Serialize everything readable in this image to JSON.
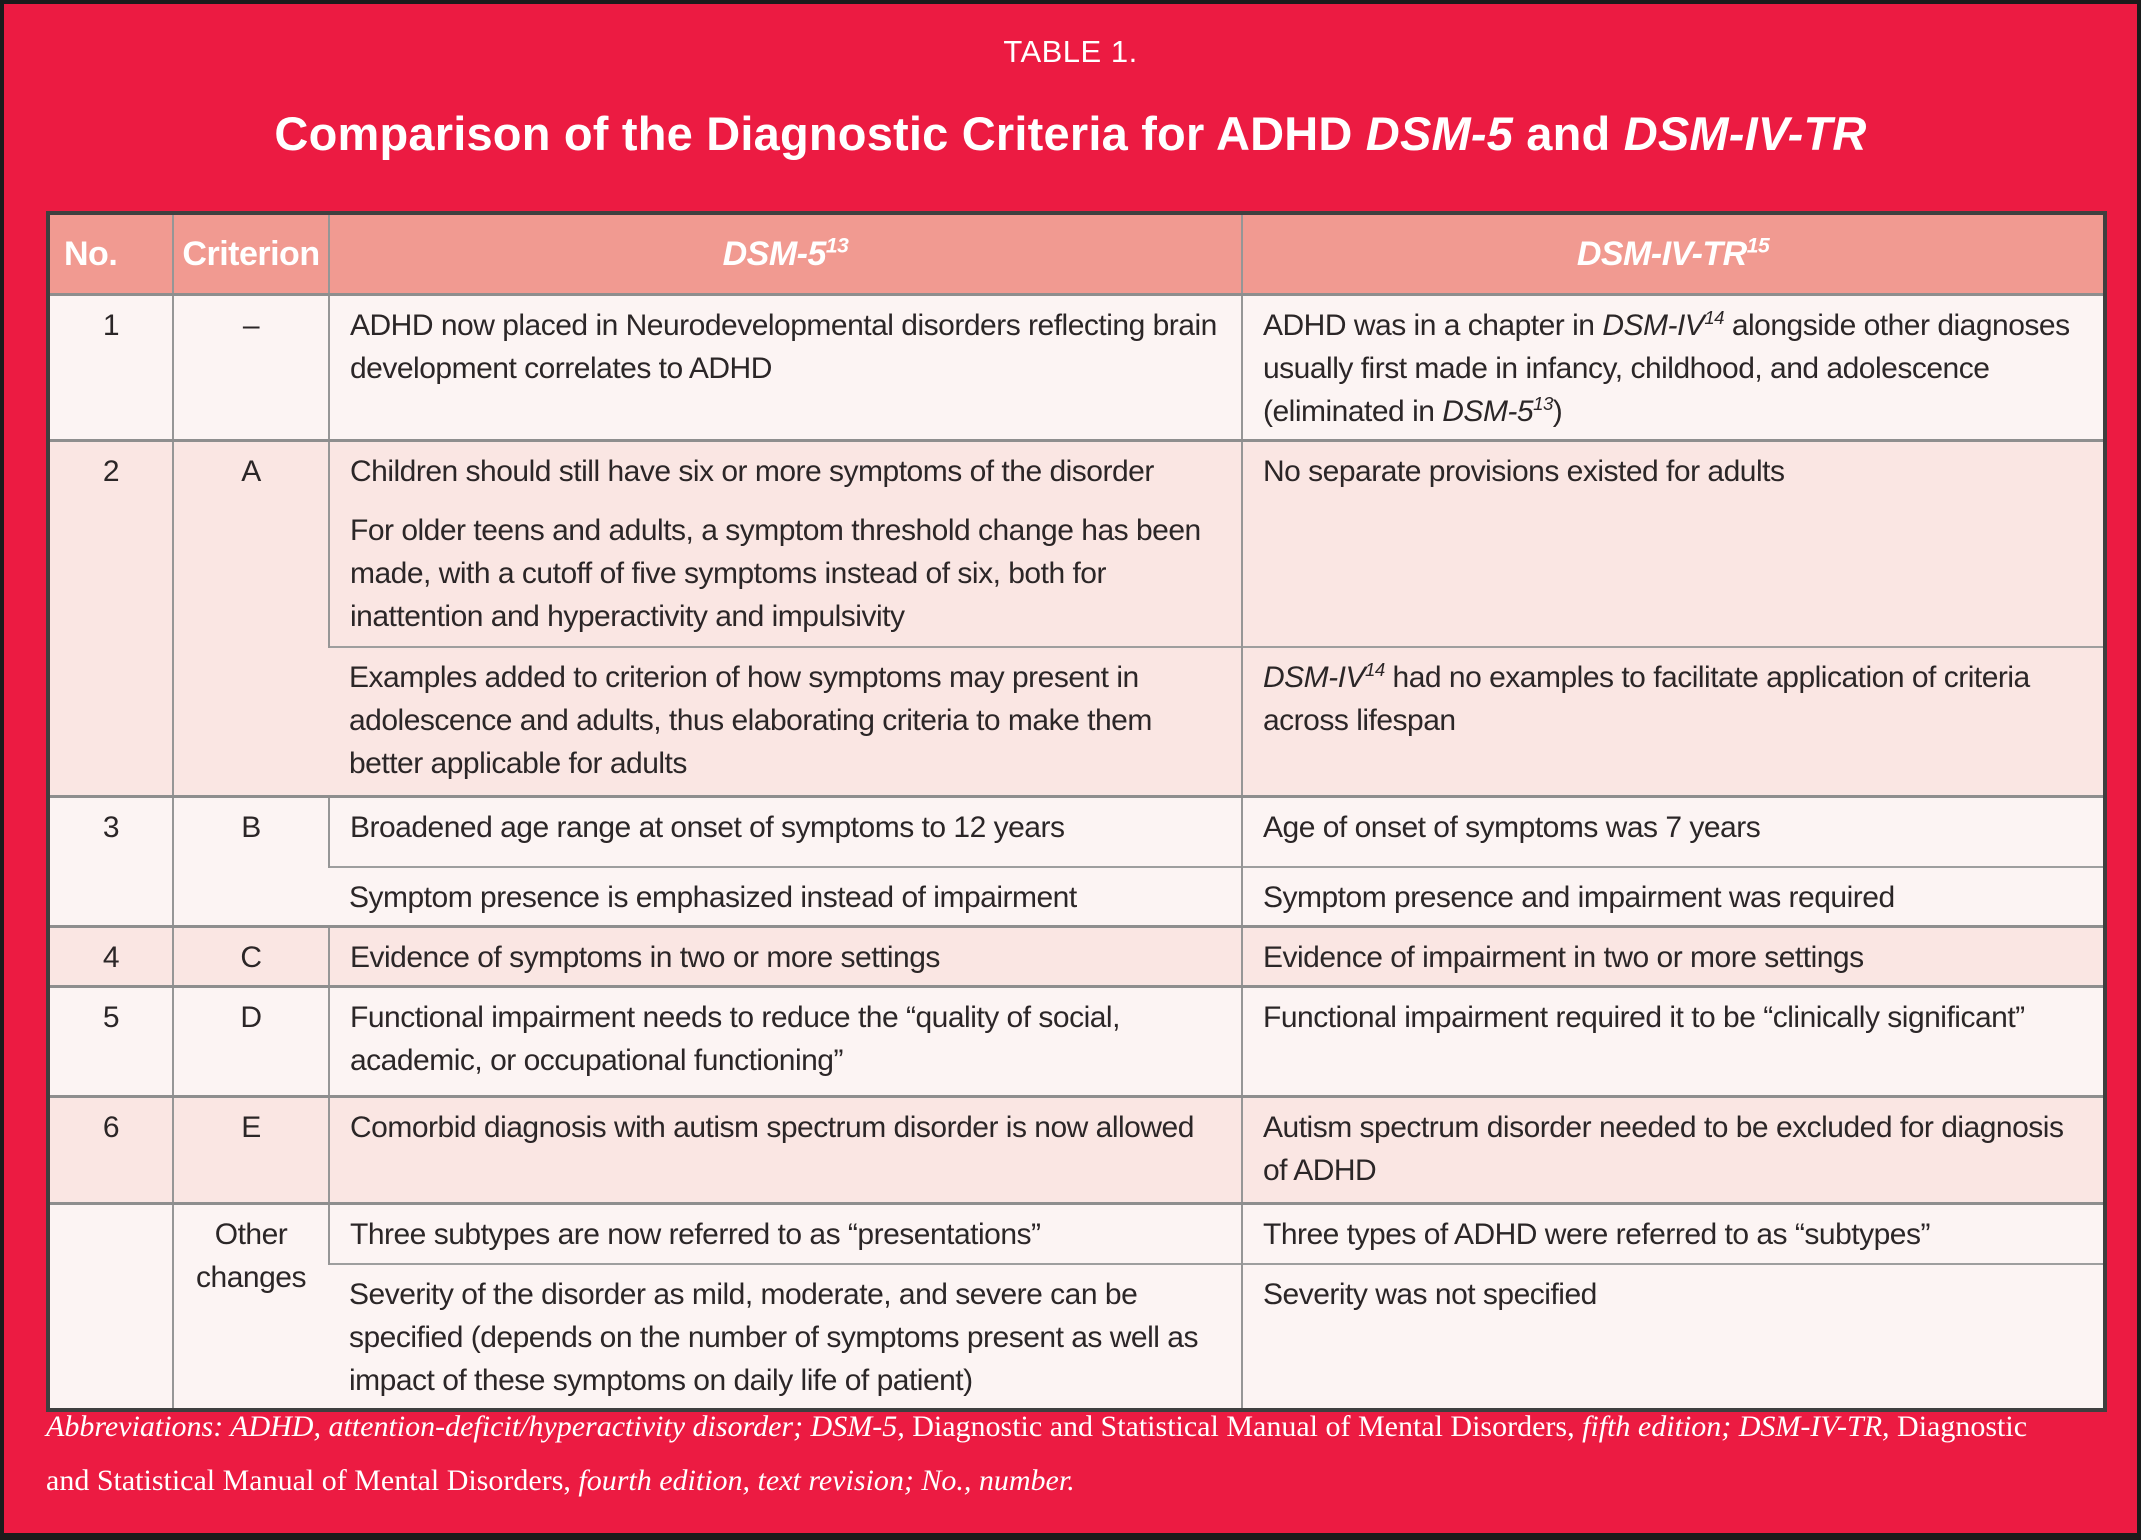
{
  "page": {
    "table_label": "TABLE 1.",
    "title_segments": [
      [
        {
          "t": "Comparison of the Diagnostic Criteria for ADHD "
        },
        {
          "t": "DSM-5",
          "i": true
        },
        {
          "t": " and "
        },
        {
          "t": "DSM-IV-TR",
          "i": true
        }
      ]
    ]
  },
  "colors": {
    "background_red": "#EC1B42",
    "header_pink": "#F19A91",
    "row_light": "#FCF4F3",
    "row_pink": "#FAE6E3",
    "grid_gray": "#8E8E8E",
    "text_dark": "#2B2627",
    "title_white": "#FFFFFF"
  },
  "table": {
    "columns": [
      {
        "label": "No."
      },
      {
        "label": "Criterion"
      },
      {
        "label_segments": [
          [
            {
              "t": "DSM-5",
              "i": true
            },
            {
              "t": "13",
              "i": true,
              "sup": true
            }
          ]
        ]
      },
      {
        "label_segments": [
          [
            {
              "t": "DSM-IV-TR",
              "i": true
            },
            {
              "t": "15",
              "i": true,
              "sup": true
            }
          ]
        ]
      }
    ],
    "rows": [
      {
        "no": "1",
        "criterion": "–",
        "subrows": [
          {
            "dsm5": [
              [
                {
                  "t": "ADHD now placed in Neurodevelopmental disorders reflecting brain development correlates to ADHD"
                }
              ]
            ],
            "dsmiv": [
              [
                {
                  "t": "ADHD was in a chapter in "
                },
                {
                  "t": "DSM-IV",
                  "i": true
                },
                {
                  "t": "14",
                  "i": true,
                  "sup": true
                },
                {
                  "t": " alongside other diagnoses usually first made in infancy, childhood, and adolescence (eliminated in "
                },
                {
                  "t": "DSM-5",
                  "i": true
                },
                {
                  "t": "13",
                  "i": true,
                  "sup": true
                },
                {
                  "t": ")"
                }
              ]
            ]
          }
        ]
      },
      {
        "no": "2",
        "criterion": "A",
        "subrows": [
          {
            "dsm5": [
              [
                {
                  "t": "Children should still have six or more symptoms of the disorder"
                }
              ],
              [
                {
                  "t": "For older teens and adults, a symptom threshold change has been made, with a cutoff of five symptoms instead of six, both for inattention and hyperactivity and impulsivity"
                }
              ]
            ],
            "dsmiv": [
              [
                {
                  "t": "No separate provisions existed for adults"
                }
              ]
            ]
          },
          {
            "dsm5": [
              [
                {
                  "t": "Examples added to criterion of how symptoms may present in adolescence and adults, thus elaborating criteria to make them better applicable for adults"
                }
              ]
            ],
            "dsmiv": [
              [
                {
                  "t": "DSM-IV",
                  "i": true
                },
                {
                  "t": "14",
                  "i": true,
                  "sup": true
                },
                {
                  "t": " had no examples to facilitate application of criteria across lifespan"
                }
              ]
            ]
          }
        ]
      },
      {
        "no": "3",
        "criterion": "B",
        "subrows": [
          {
            "dsm5": [
              [
                {
                  "t": "Broadened age range at onset of symptoms to 12 years"
                }
              ]
            ],
            "dsmiv": [
              [
                {
                  "t": "Age of onset of symptoms was 7 years"
                }
              ]
            ]
          },
          {
            "dsm5": [
              [
                {
                  "t": "Symptom presence is emphasized instead of impairment"
                }
              ]
            ],
            "dsmiv": [
              [
                {
                  "t": "Symptom presence and impairment was required"
                }
              ]
            ]
          }
        ]
      },
      {
        "no": "4",
        "criterion": "C",
        "subrows": [
          {
            "dsm5": [
              [
                {
                  "t": "Evidence of symptoms in two or more settings"
                }
              ]
            ],
            "dsmiv": [
              [
                {
                  "t": "Evidence of impairment in two or more settings"
                }
              ]
            ]
          }
        ]
      },
      {
        "no": "5",
        "criterion": "D",
        "subrows": [
          {
            "dsm5": [
              [
                {
                  "t": "Functional impairment needs to reduce the “quality of social, academic, or occupational functioning”"
                }
              ]
            ],
            "dsmiv": [
              [
                {
                  "t": "Functional impairment required it to be “clinically significant”"
                }
              ]
            ]
          }
        ]
      },
      {
        "no": "6",
        "criterion": "E",
        "subrows": [
          {
            "dsm5": [
              [
                {
                  "t": "Comorbid diagnosis with autism spectrum disorder is now allowed"
                }
              ]
            ],
            "dsmiv": [
              [
                {
                  "t": "Autism spectrum disorder needed to be excluded for diagnosis of ADHD"
                }
              ]
            ]
          }
        ]
      },
      {
        "no": "",
        "criterion": "Other changes",
        "subrows": [
          {
            "dsm5": [
              [
                {
                  "t": "Three subtypes are now referred to as “presentations”"
                }
              ]
            ],
            "dsmiv": [
              [
                {
                  "t": "Three types of ADHD were referred to as “subtypes”"
                }
              ]
            ]
          },
          {
            "dsm5": [
              [
                {
                  "t": "Severity of the disorder as mild, moderate, and severe can be specified (depends on the number of symptoms present as well as impact of these symptoms on daily life of patient)"
                }
              ]
            ],
            "dsmiv": [
              [
                {
                  "t": "Severity was not specified"
                }
              ]
            ]
          }
        ]
      }
    ]
  },
  "footnote_segments": [
    [
      {
        "t": "Abbreviations: ADHD, attention-deficit/hyperactivity disorder; DSM-5,",
        "i": true
      },
      {
        "t": " Diagnostic and Statistical Manual of Mental Disorders, "
      },
      {
        "t": "fifth edition; DSM-IV-TR,",
        "i": true
      },
      {
        "t": " Diagnostic and Statistical Manual of Mental Disorders, "
      },
      {
        "t": "fourth edition, text revision; No., number.",
        "i": true
      }
    ]
  ]
}
